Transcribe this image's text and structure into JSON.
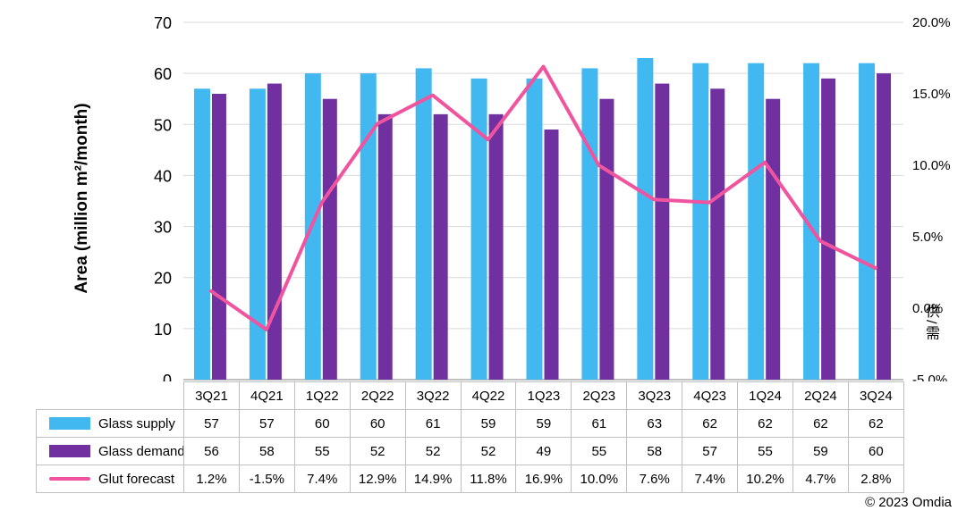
{
  "chart": {
    "left_axis_label": "Area (million m²/month)",
    "right_axis_label": "供/需",
    "left_ticks": [
      "0",
      "10",
      "20",
      "30",
      "40",
      "50",
      "60",
      "70"
    ],
    "right_ticks": [
      "-5.0%",
      "0.0%",
      "5.0%",
      "10.0%",
      "15.0%",
      "20.0%"
    ]
  },
  "chart_data": {
    "type": "bar+line",
    "categories": [
      "3Q21",
      "4Q21",
      "1Q22",
      "2Q22",
      "3Q22",
      "4Q22",
      "1Q23",
      "2Q23",
      "3Q23",
      "4Q23",
      "1Q24",
      "2Q24",
      "3Q24"
    ],
    "series": [
      {
        "name": "Glass supply",
        "type": "bar",
        "axis": "left",
        "color": "#41B8F0",
        "values": [
          57,
          57,
          60,
          60,
          61,
          59,
          59,
          61,
          63,
          62,
          62,
          62,
          62
        ]
      },
      {
        "name": "Glass demand",
        "type": "bar",
        "axis": "left",
        "color": "#7030A0",
        "values": [
          56,
          58,
          55,
          52,
          52,
          52,
          49,
          55,
          58,
          57,
          55,
          59,
          60
        ]
      },
      {
        "name": "Glut forecast",
        "type": "line",
        "axis": "right",
        "color": "#F0549E",
        "values": [
          1.2,
          -1.5,
          7.4,
          12.9,
          14.9,
          11.8,
          16.9,
          10.0,
          7.6,
          7.4,
          10.2,
          4.7,
          2.8
        ]
      }
    ],
    "left_axis": {
      "min": 0,
      "max": 70,
      "step": 10
    },
    "right_axis": {
      "min": -5,
      "max": 20,
      "step": 5
    },
    "grid": "horizontal",
    "legend_position": "table-left",
    "title": ""
  },
  "table": {
    "rows": [
      {
        "label": "Glass supply",
        "values": [
          "57",
          "57",
          "60",
          "60",
          "61",
          "59",
          "59",
          "61",
          "63",
          "62",
          "62",
          "62",
          "62"
        ]
      },
      {
        "label": "Glass demand",
        "values": [
          "56",
          "58",
          "55",
          "52",
          "52",
          "52",
          "49",
          "55",
          "58",
          "57",
          "55",
          "59",
          "60"
        ]
      },
      {
        "label": "Glut forecast",
        "values": [
          "1.2%",
          "-1.5%",
          "7.4%",
          "12.9%",
          "14.9%",
          "11.8%",
          "16.9%",
          "10.0%",
          "7.6%",
          "7.4%",
          "10.2%",
          "4.7%",
          "2.8%"
        ]
      }
    ]
  },
  "footer": {
    "copyright": "© 2023 Omdia"
  }
}
